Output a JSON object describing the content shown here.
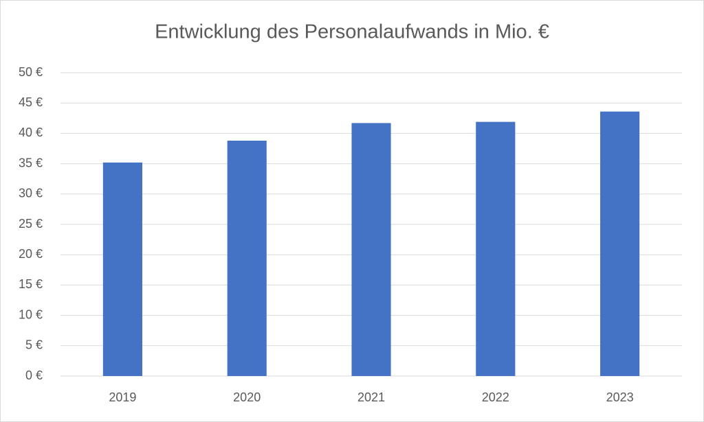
{
  "chart_data": {
    "type": "bar",
    "title": "Entwicklung des Personalaufwands in Mio. €",
    "categories": [
      "2019",
      "2020",
      "2021",
      "2022",
      "2023"
    ],
    "values": [
      35.2,
      38.8,
      41.7,
      41.9,
      43.6
    ],
    "color": "#4472c4",
    "ylim": [
      0,
      50
    ],
    "yticks": [
      {
        "value": 0,
        "label": "0 €"
      },
      {
        "value": 5,
        "label": "5 €"
      },
      {
        "value": 10,
        "label": "10 €"
      },
      {
        "value": 15,
        "label": "15 €"
      },
      {
        "value": 20,
        "label": "20 €"
      },
      {
        "value": 25,
        "label": "25 €"
      },
      {
        "value": 30,
        "label": "30 €"
      },
      {
        "value": 35,
        "label": "35 €"
      },
      {
        "value": 40,
        "label": "40 €"
      },
      {
        "value": 45,
        "label": "45 €"
      },
      {
        "value": 50,
        "label": "50 €"
      }
    ],
    "grid": true
  }
}
